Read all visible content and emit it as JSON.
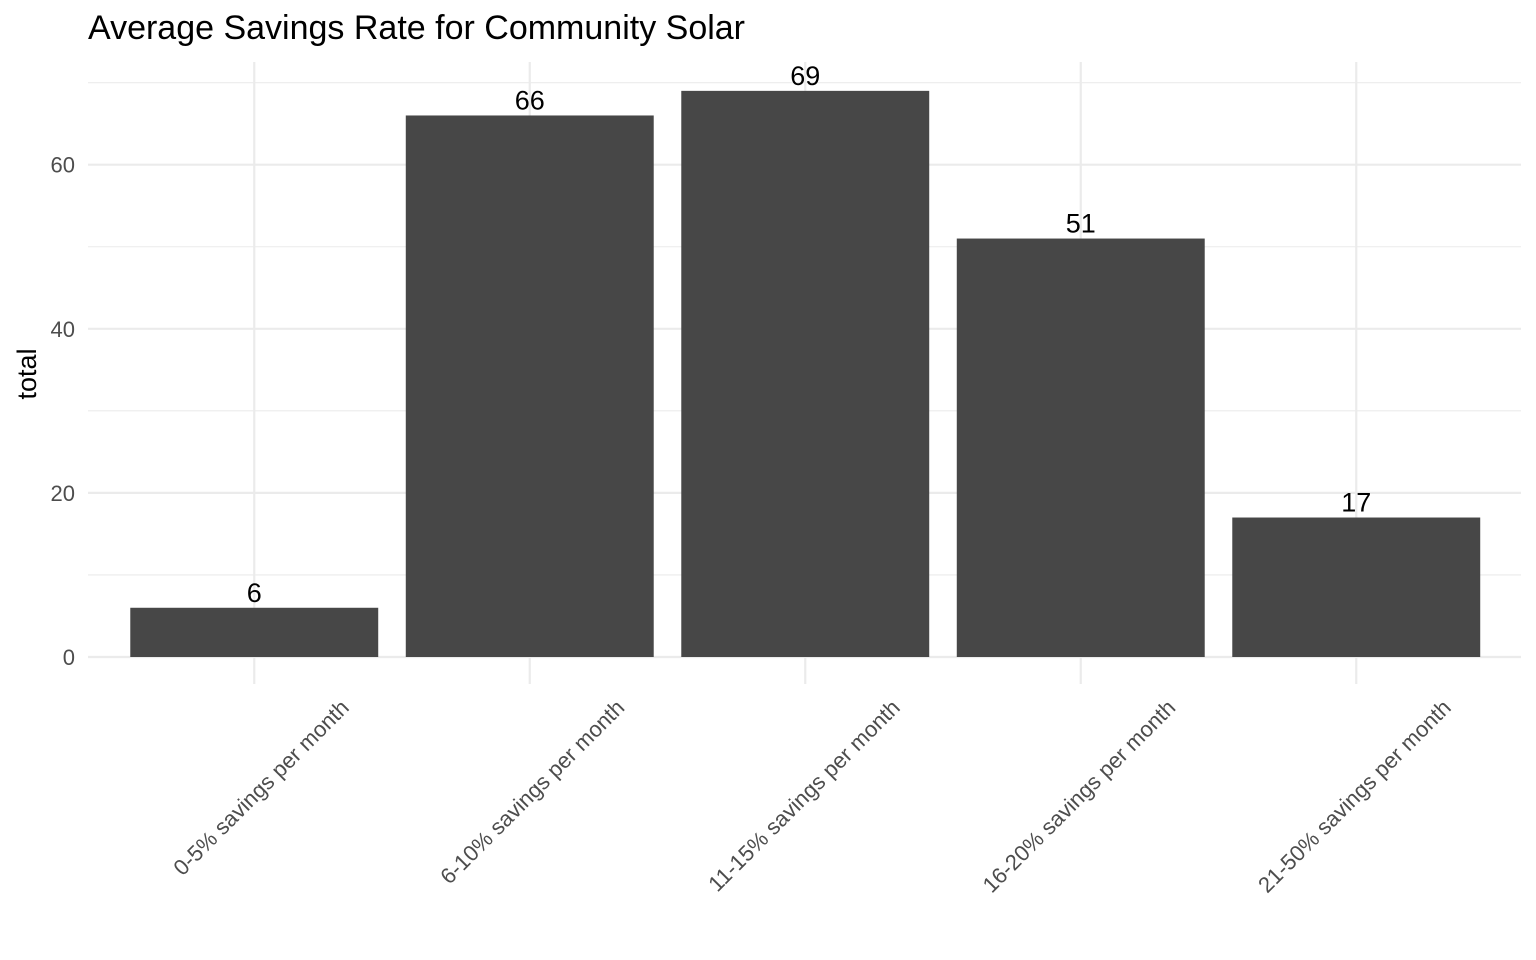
{
  "chart_data": {
    "type": "bar",
    "title": "Average Savings Rate for Community Solar",
    "xlabel": "",
    "ylabel": "total",
    "categories": [
      "0-5% savings per month",
      "6-10% savings per month",
      "11-15% savings per month",
      "16-20% savings per month",
      "21-50% savings per month"
    ],
    "values": [
      6,
      66,
      69,
      51,
      17
    ],
    "data_labels": [
      "6",
      "66",
      "69",
      "51",
      "17"
    ],
    "ylim": [
      0,
      72.5
    ],
    "yticks": [
      0,
      20,
      40,
      60
    ],
    "ytick_labels": [
      "0",
      "20",
      "40",
      "60"
    ],
    "y_minor_ticks": [
      10,
      30,
      50,
      70
    ],
    "grid": true,
    "legend": "none",
    "x_tick_rotation_deg": 45,
    "colors": {
      "bar": "#474747",
      "grid": "#ebebeb",
      "tick_text": "#4d4d4d",
      "text": "#000000",
      "background": "#ffffff"
    }
  }
}
